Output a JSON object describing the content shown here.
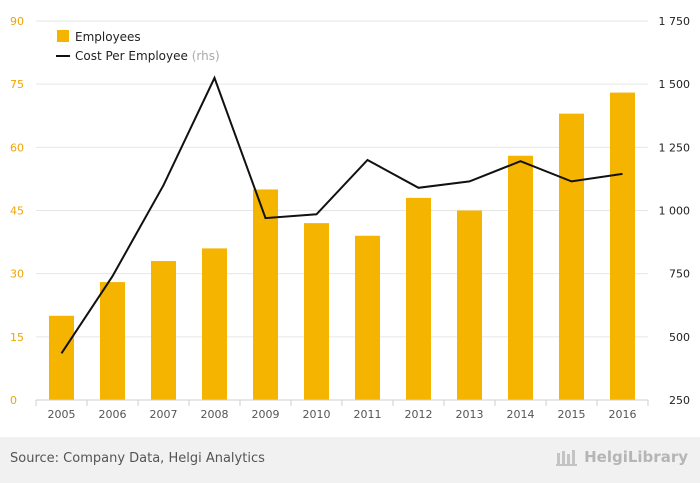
{
  "chart_data": {
    "type": "bar",
    "categories": [
      "2005",
      "2006",
      "2007",
      "2008",
      "2009",
      "2010",
      "2011",
      "2012",
      "2013",
      "2014",
      "2015",
      "2016"
    ],
    "series": [
      {
        "name": "Employees",
        "type": "bar",
        "axis": "left",
        "values": [
          20,
          28,
          33,
          36,
          50,
          42,
          39,
          48,
          45,
          58,
          68,
          73
        ]
      },
      {
        "name": "Cost Per Employee",
        "type": "line",
        "axis": "right",
        "values": [
          435,
          740,
          1100,
          1525,
          970,
          985,
          1200,
          1090,
          1115,
          1195,
          1115,
          1145
        ]
      }
    ],
    "y_left": {
      "ylim": [
        0,
        90
      ],
      "ticks": [
        0,
        15,
        30,
        45,
        60,
        75,
        90
      ],
      "tick_labels": [
        "0",
        "15",
        "30",
        "45",
        "60",
        "75",
        "90"
      ]
    },
    "y_right": {
      "ylim": [
        250,
        1750
      ],
      "ticks": [
        250,
        500,
        750,
        1000,
        1250,
        1500,
        1750
      ],
      "tick_labels": [
        "250",
        "500",
        "750",
        "1 000",
        "1 250",
        "1 500",
        "1 750"
      ]
    },
    "legend": {
      "placement": "top-left",
      "rhs_suffix": "(rhs)"
    },
    "grid": true,
    "colors": {
      "bar": "#f5b400",
      "line": "#111111",
      "left_axis_text": "#f0a500",
      "right_axis_text": "#222222",
      "grid": "#e6e6e6"
    }
  },
  "footer": {
    "source": "Source: Company Data, Helgi Analytics",
    "brand": "HelgiLibrary"
  }
}
